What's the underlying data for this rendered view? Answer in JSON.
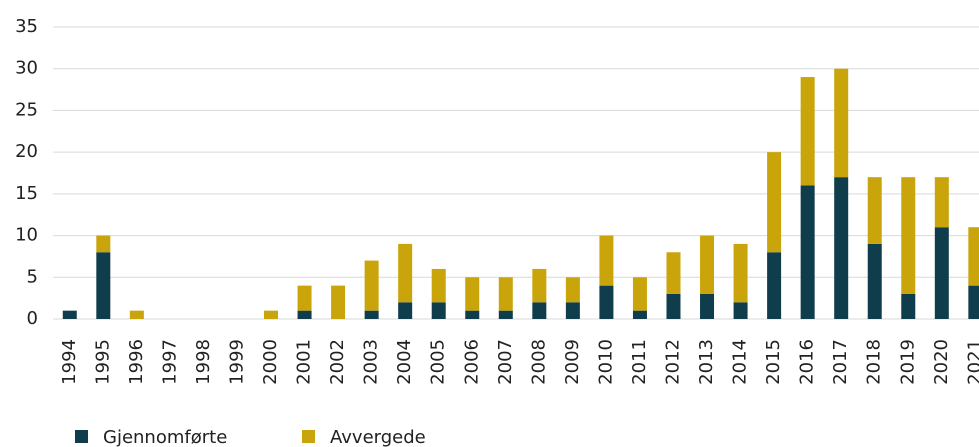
{
  "chart_data": {
    "type": "stacked_bar",
    "categories": [
      "1994",
      "1995",
      "1996",
      "1997",
      "1998",
      "1999",
      "2000",
      "2001",
      "2002",
      "2003",
      "2004",
      "2005",
      "2006",
      "2007",
      "2008",
      "2009",
      "2010",
      "2011",
      "2012",
      "2013",
      "2014",
      "2015",
      "2016",
      "2017",
      "2018",
      "2019",
      "2020",
      "2021"
    ],
    "series": [
      {
        "name": "Gjennomførte",
        "color": "#0f3d4c",
        "values": [
          1,
          8,
          0,
          0,
          0,
          0,
          0,
          1,
          0,
          1,
          2,
          2,
          1,
          1,
          2,
          2,
          4,
          1,
          3,
          3,
          2,
          8,
          16,
          17,
          9,
          3,
          11,
          4
        ]
      },
      {
        "name": "Avvergede",
        "color": "#c9a40a",
        "values": [
          0,
          2,
          1,
          0,
          0,
          0,
          1,
          3,
          4,
          6,
          7,
          4,
          4,
          4,
          4,
          3,
          6,
          4,
          5,
          7,
          7,
          12,
          13,
          13,
          8,
          14,
          6,
          7
        ]
      }
    ],
    "ylim": [
      0,
      35
    ],
    "yticks": [
      0,
      5,
      10,
      15,
      20,
      25,
      30,
      35
    ],
    "grid": true,
    "legend": "bottom-left"
  }
}
